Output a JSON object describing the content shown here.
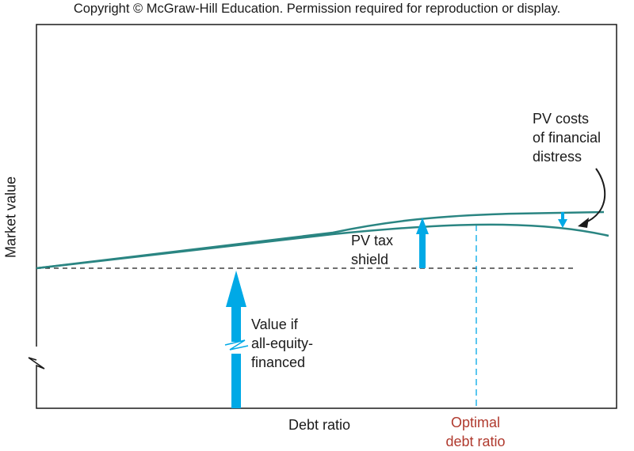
{
  "copyright": "Copyright © McGraw-Hill Education. Permission required for reproduction or display.",
  "axes": {
    "ylabel": "Market value",
    "xlabel": "Debt ratio"
  },
  "labels": {
    "pv_costs": [
      "PV costs",
      "of financial",
      "distress"
    ],
    "pv_tax_shield": [
      "PV tax",
      "shield"
    ],
    "all_equity": [
      "Value if",
      "all-equity-",
      "financed"
    ],
    "optimal": [
      "Optimal",
      "debt ratio"
    ]
  },
  "colors": {
    "curve": "#2a8582",
    "arrow": "#00a9e6",
    "optimal_text": "#b03a2e",
    "axis": "#1a1a1a"
  }
}
